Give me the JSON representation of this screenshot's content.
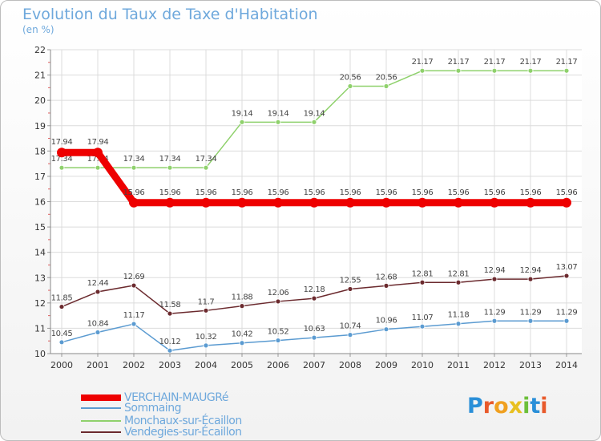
{
  "header": {
    "title": "Evolution du Taux de Taxe d'Habitation",
    "subtitle": "(en %)"
  },
  "chart_data": {
    "type": "line",
    "title": "Evolution du Taux de Taxe d'Habitation",
    "subtitle": "(en %)",
    "xlabel": "",
    "ylabel": "",
    "ylim": [
      10,
      22
    ],
    "y_ticks": [
      "10",
      "11",
      "12",
      "13",
      "14",
      "15",
      "16",
      "17",
      "18",
      "19",
      "20",
      "21",
      "22"
    ],
    "categories": [
      "2000",
      "2001",
      "2002",
      "2003",
      "2004",
      "2005",
      "2006",
      "2007",
      "2008",
      "2009",
      "2010",
      "2011",
      "2012",
      "2013",
      "2014"
    ],
    "grid": true,
    "legend_position": "bottom-left",
    "series": [
      {
        "name": "Vendegies-sur-Écaillon",
        "color": "#6b2a2e",
        "values": [
          11.85,
          12.44,
          12.69,
          11.58,
          11.7,
          11.88,
          12.06,
          12.18,
          12.55,
          12.68,
          12.81,
          12.81,
          12.94,
          12.94,
          13.07
        ],
        "labels": [
          "11.85",
          "12.44",
          "12.69",
          "11.58",
          "11.7",
          "11.88",
          "12.06",
          "12.18",
          "12.55",
          "12.68",
          "12.81",
          "12.81",
          "12.94",
          "12.94",
          "13.07"
        ]
      },
      {
        "name": "Monchaux-sur-Écaillon",
        "color": "#8fd16c",
        "values": [
          17.34,
          17.34,
          17.34,
          17.34,
          17.34,
          19.14,
          19.14,
          19.14,
          20.56,
          20.56,
          21.17,
          21.17,
          21.17,
          21.17,
          21.17
        ],
        "labels": [
          "17.34",
          "17.34",
          "17.34",
          "17.34",
          "17.34",
          "19.14",
          "19.14",
          "19.14",
          "20.56",
          "20.56",
          "21.17",
          "21.17",
          "21.17",
          "21.17",
          "21.17"
        ]
      },
      {
        "name": "Sommaing",
        "color": "#5b9bd1",
        "values": [
          10.45,
          10.84,
          11.17,
          10.12,
          10.32,
          10.42,
          10.52,
          10.63,
          10.74,
          10.96,
          11.07,
          11.18,
          11.29,
          11.29,
          11.29
        ],
        "labels": [
          "10.45",
          "10.84",
          "11.17",
          "10.12",
          "10.32",
          "10.42",
          "10.52",
          "10.63",
          "10.74",
          "10.96",
          "11.07",
          "11.18",
          "11.29",
          "11.29",
          "11.29"
        ]
      },
      {
        "name": "VERCHAIN-MAUGRé",
        "color": "#ee0000",
        "values": [
          17.94,
          17.94,
          15.96,
          15.96,
          15.96,
          15.96,
          15.96,
          15.96,
          15.96,
          15.96,
          15.96,
          15.96,
          15.96,
          15.96,
          15.96
        ],
        "labels": [
          "17.94",
          "17.94",
          "15.96",
          "15.96",
          "15.96",
          "15.96",
          "15.96",
          "15.96",
          "15.96",
          "15.96",
          "15.96",
          "15.96",
          "15.96",
          "15.96",
          "15.96"
        ]
      }
    ]
  },
  "legend": {
    "items": [
      {
        "label": "VERCHAIN-MAUGRé",
        "color": "#ee0000"
      },
      {
        "label": "Sommaing",
        "color": "#5b9bd1"
      },
      {
        "label": "Monchaux-sur-Écaillon",
        "color": "#8fd16c"
      },
      {
        "label": "Vendegies-sur-Écaillon",
        "color": "#6b2a2e"
      }
    ]
  },
  "logo": {
    "letters": [
      "P",
      "r",
      "o",
      "x",
      "i",
      "t",
      "i"
    ],
    "colors": [
      "#2a8fd8",
      "#e85a2b",
      "#f0a020",
      "#e8c020",
      "#6cbf3a",
      "#2a8fd8",
      "#e85a2b"
    ]
  }
}
